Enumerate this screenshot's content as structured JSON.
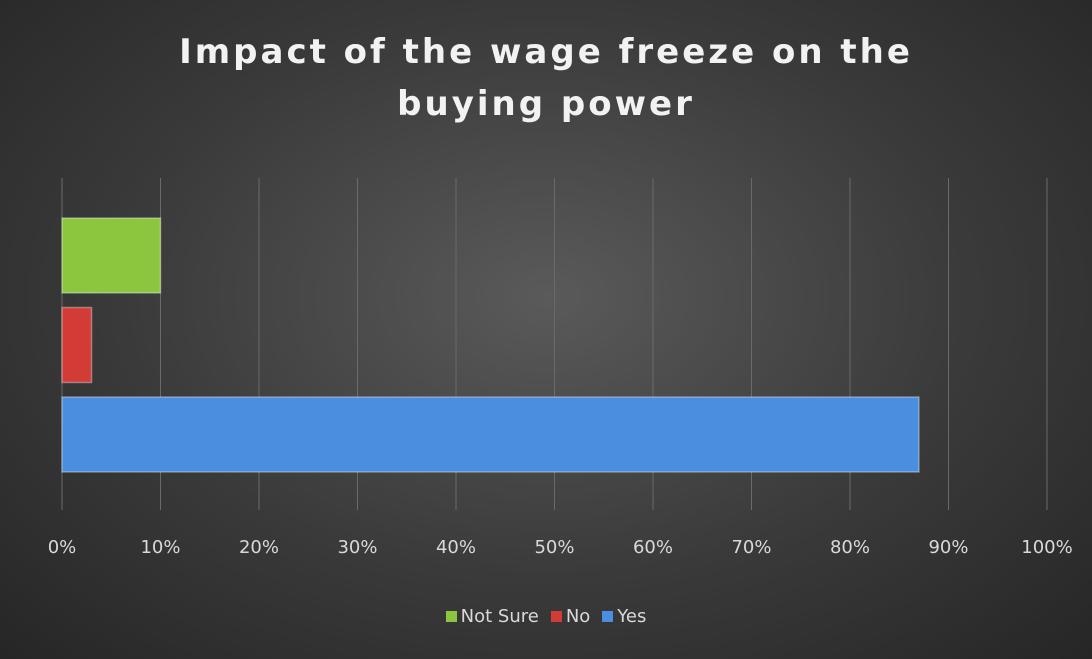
{
  "chart_data": {
    "type": "bar",
    "orientation": "horizontal",
    "title": "Impact of the wage freeze on the buying power",
    "categories": [
      null
    ],
    "series": [
      {
        "name": "Not Sure",
        "color": "#8cc63f",
        "values": [
          10
        ]
      },
      {
        "name": "No",
        "color": "#d23b36",
        "values": [
          3
        ]
      },
      {
        "name": "Yes",
        "color": "#4a8ee0",
        "values": [
          87
        ]
      }
    ],
    "xlim": [
      0,
      100
    ],
    "xticks": [
      {
        "value": 0,
        "label": "0%"
      },
      {
        "value": 10,
        "label": "10%"
      },
      {
        "value": 20,
        "label": "20%"
      },
      {
        "value": 30,
        "label": "30%"
      },
      {
        "value": 40,
        "label": "40%"
      },
      {
        "value": 50,
        "label": "50%"
      },
      {
        "value": 60,
        "label": "60%"
      },
      {
        "value": 70,
        "label": "70%"
      },
      {
        "value": 80,
        "label": "80%"
      },
      {
        "value": 90,
        "label": "90%"
      },
      {
        "value": 100,
        "label": "100%"
      }
    ],
    "grid": true,
    "legend": "bottom"
  }
}
